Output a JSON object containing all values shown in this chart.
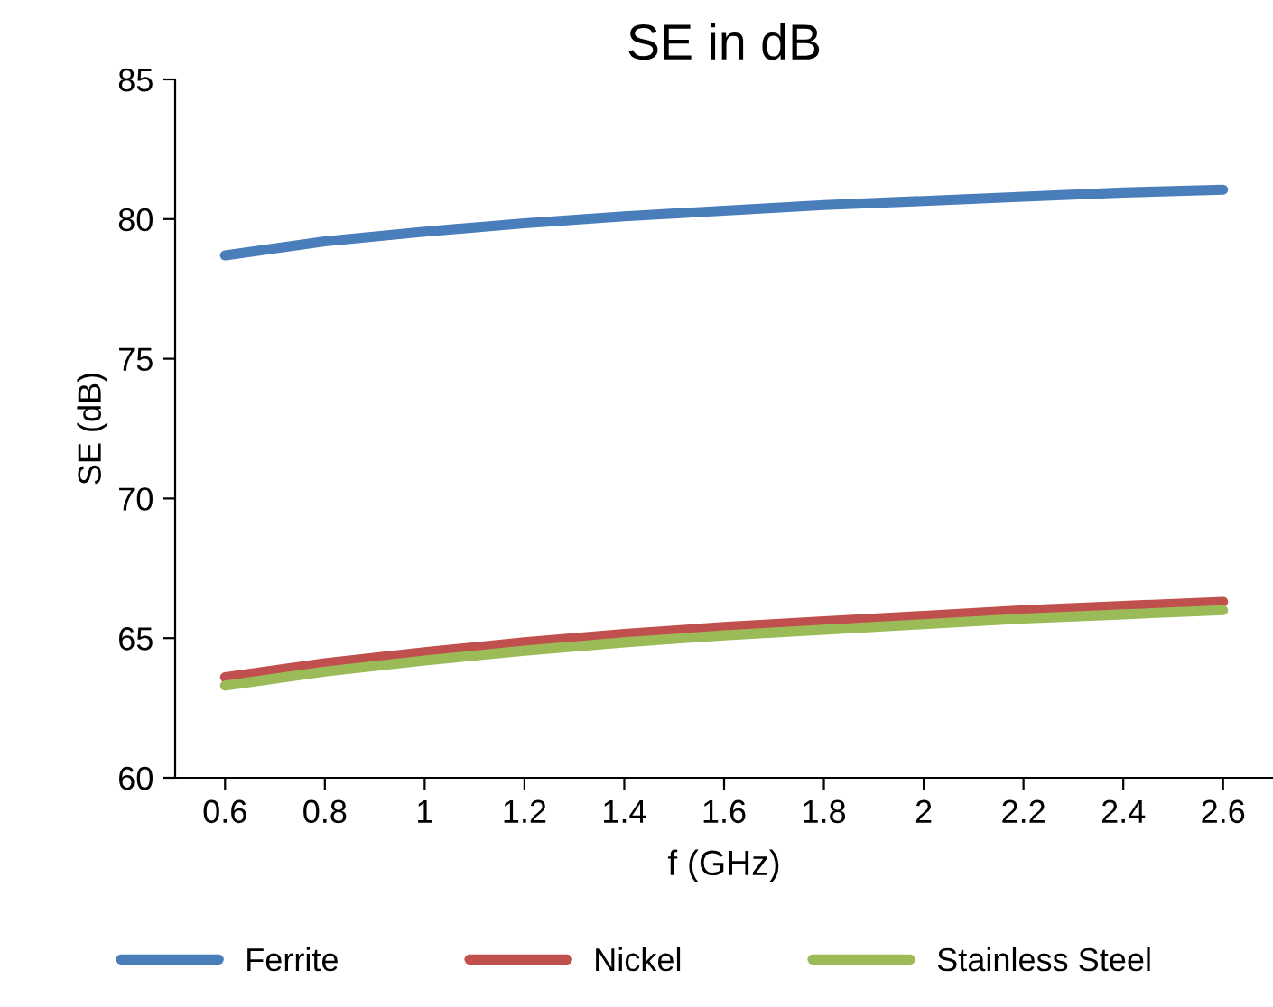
{
  "chart_data": {
    "type": "line",
    "title": "SE in dB",
    "xlabel": "f (GHz)",
    "ylabel": "SE (dB)",
    "categories": [
      "0.6",
      "0.8",
      "1",
      "1.2",
      "1.4",
      "1.6",
      "1.8",
      "2",
      "2.2",
      "2.4",
      "2.6"
    ],
    "series": [
      {
        "name": "Ferrite",
        "color": "#4a7ebb",
        "values": [
          78.7,
          79.2,
          79.55,
          79.85,
          80.1,
          80.3,
          80.5,
          80.65,
          80.8,
          80.95,
          81.05
        ]
      },
      {
        "name": "Nickel",
        "color": "#c0504d",
        "values": [
          63.6,
          64.1,
          64.5,
          64.85,
          65.15,
          65.4,
          65.6,
          65.8,
          66.0,
          66.15,
          66.3
        ]
      },
      {
        "name": "Stainless Steel",
        "color": "#9bbb59",
        "values": [
          63.3,
          63.8,
          64.2,
          64.55,
          64.85,
          65.1,
          65.3,
          65.5,
          65.7,
          65.85,
          66.0
        ]
      }
    ],
    "ylim": [
      60,
      85
    ],
    "yticks": [
      60,
      65,
      70,
      75,
      80,
      85
    ],
    "grid": false,
    "legend": "bottom",
    "marker": "none",
    "line_style": "solid"
  }
}
